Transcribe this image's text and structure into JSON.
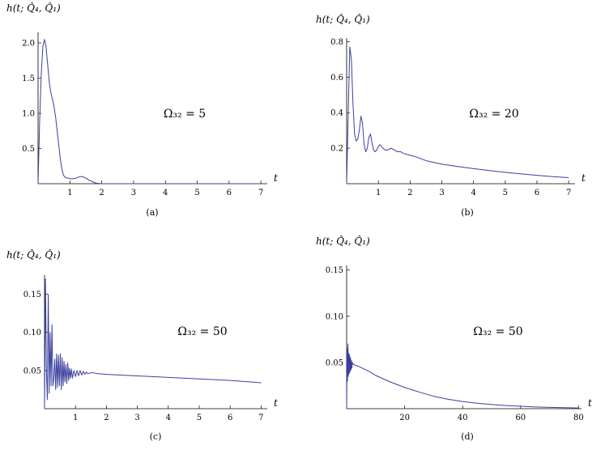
{
  "chart_data": [
    {
      "panel": "(a)",
      "type": "line",
      "ylabel": "h(t; Q̂₄, Q̂₁)",
      "xlabel": "t",
      "annotation": "Ω₃₂ = 5",
      "caption": "(a)",
      "xlim": [
        0,
        7.2
      ],
      "ylim": [
        0,
        2.15
      ],
      "xticks": [
        1,
        2,
        3,
        4,
        5,
        6,
        7
      ],
      "yticks": [
        0.5,
        1.0,
        1.5,
        2.0
      ],
      "ytick_labels": [
        "0.5",
        "1.0",
        "1.5",
        "2.0"
      ],
      "series": [
        {
          "color": "#3a3f9c",
          "x": [
            0,
            0.05,
            0.1,
            0.15,
            0.2,
            0.25,
            0.3,
            0.35,
            0.4,
            0.45,
            0.5,
            0.55,
            0.6,
            0.65,
            0.7,
            0.75,
            0.8,
            0.85,
            0.9,
            0.95,
            1.0,
            1.1,
            1.2,
            1.3,
            1.4,
            1.5,
            1.6,
            1.7,
            1.8,
            1.9,
            2.0,
            2.5,
            3,
            4,
            5,
            6,
            7
          ],
          "y": [
            0,
            0.9,
            1.55,
            1.95,
            2.05,
            1.95,
            1.7,
            1.45,
            1.3,
            1.2,
            1.1,
            0.95,
            0.75,
            0.55,
            0.35,
            0.2,
            0.12,
            0.09,
            0.08,
            0.08,
            0.07,
            0.07,
            0.08,
            0.1,
            0.1,
            0.08,
            0.05,
            0.03,
            0.01,
            0.005,
            0,
            0,
            0,
            0,
            0,
            0,
            0
          ]
        }
      ]
    },
    {
      "panel": "(b)",
      "type": "line",
      "ylabel": "h(t; Q̂₄, Q̂₁)",
      "xlabel": "t",
      "annotation": "Ω₃₂ = 20",
      "caption": "(b)",
      "xlim": [
        0,
        7.2
      ],
      "ylim": [
        0,
        0.82
      ],
      "xticks": [
        1,
        2,
        3,
        4,
        5,
        6,
        7
      ],
      "yticks": [
        0.2,
        0.4,
        0.6,
        0.8
      ],
      "ytick_labels": [
        "0.2",
        "0.4",
        "0.6",
        "0.8"
      ],
      "series": [
        {
          "color": "#3a3f9c",
          "x": [
            0,
            0.05,
            0.1,
            0.15,
            0.2,
            0.25,
            0.3,
            0.35,
            0.4,
            0.45,
            0.5,
            0.55,
            0.6,
            0.65,
            0.7,
            0.75,
            0.8,
            0.85,
            0.9,
            0.95,
            1.0,
            1.05,
            1.1,
            1.2,
            1.3,
            1.4,
            1.5,
            1.6,
            1.7,
            1.8,
            2.0,
            2.2,
            2.5,
            3,
            3.5,
            4,
            4.5,
            5,
            5.5,
            6,
            6.5,
            7
          ],
          "y": [
            0,
            0.4,
            0.77,
            0.7,
            0.45,
            0.28,
            0.24,
            0.25,
            0.3,
            0.38,
            0.34,
            0.22,
            0.18,
            0.2,
            0.26,
            0.28,
            0.23,
            0.19,
            0.18,
            0.19,
            0.21,
            0.22,
            0.21,
            0.19,
            0.19,
            0.2,
            0.19,
            0.18,
            0.18,
            0.17,
            0.16,
            0.15,
            0.13,
            0.11,
            0.097,
            0.085,
            0.074,
            0.064,
            0.055,
            0.047,
            0.04,
            0.034
          ]
        }
      ]
    },
    {
      "panel": "(c)",
      "type": "line",
      "ylabel": "h(t; Q̂₄, Q̂₁)",
      "xlabel": "t",
      "annotation": "Ω₃₂ = 50",
      "caption": "(c)",
      "xlim": [
        0,
        7.2
      ],
      "ylim": [
        0,
        0.175
      ],
      "xticks": [
        1,
        2,
        3,
        4,
        5,
        6,
        7
      ],
      "yticks": [
        0.05,
        0.1,
        0.15
      ],
      "ytick_labels": [
        "0.05",
        "0.10",
        "0.15"
      ],
      "series": [
        {
          "color": "#3a3f9c",
          "x": [
            0,
            0.03,
            0.06,
            0.09,
            0.12,
            0.15,
            0.18,
            0.21,
            0.24,
            0.27,
            0.3,
            0.33,
            0.36,
            0.39,
            0.42,
            0.45,
            0.48,
            0.51,
            0.54,
            0.57,
            0.6,
            0.63,
            0.66,
            0.69,
            0.72,
            0.75,
            0.78,
            0.81,
            0.84,
            0.87,
            0.9,
            0.95,
            1.0,
            1.05,
            1.1,
            1.15,
            1.2,
            1.25,
            1.3,
            1.35,
            1.4,
            1.5,
            1.6,
            1.7,
            2.0,
            2.5,
            3,
            3.5,
            4,
            4.5,
            5,
            5.5,
            6,
            6.5,
            7
          ],
          "y": [
            0,
            0.17,
            0.05,
            0.012,
            0.15,
            0.02,
            0.1,
            0.03,
            0.11,
            0.03,
            0.04,
            0.065,
            0.025,
            0.072,
            0.028,
            0.07,
            0.03,
            0.072,
            0.025,
            0.067,
            0.03,
            0.062,
            0.035,
            0.058,
            0.033,
            0.06,
            0.037,
            0.053,
            0.04,
            0.052,
            0.04,
            0.05,
            0.042,
            0.05,
            0.043,
            0.05,
            0.044,
            0.049,
            0.045,
            0.048,
            0.046,
            0.047,
            0.047,
            0.046,
            0.045,
            0.044,
            0.043,
            0.042,
            0.041,
            0.04,
            0.039,
            0.038,
            0.037,
            0.0355,
            0.034
          ]
        }
      ]
    },
    {
      "panel": "(d)",
      "type": "line",
      "ylabel": "h(t; Q̂₄, Q̂₁)",
      "xlabel": "t",
      "annotation": "Ω₃₂ = 50",
      "caption": "(d)",
      "xlim": [
        0,
        81
      ],
      "ylim": [
        0,
        0.155
      ],
      "xticks": [
        20,
        40,
        60,
        80
      ],
      "yticks": [
        0.05,
        0.1,
        0.15
      ],
      "ytick_labels": [
        "0.05",
        "0.10",
        "0.15"
      ],
      "series": [
        {
          "color": "#3a3f9c",
          "x": [
            0,
            0.15,
            0.3,
            0.45,
            0.6,
            0.75,
            0.9,
            1.05,
            1.2,
            1.35,
            1.5,
            1.65,
            1.8,
            2.0,
            2.3,
            3,
            4,
            6,
            8,
            10,
            15,
            20,
            25,
            30,
            35,
            40,
            45,
            50,
            55,
            60,
            65,
            70,
            75,
            80
          ],
          "y": [
            0,
            0.065,
            0.03,
            0.07,
            0.035,
            0.06,
            0.038,
            0.058,
            0.04,
            0.055,
            0.042,
            0.052,
            0.044,
            0.05,
            0.048,
            0.047,
            0.046,
            0.043,
            0.04,
            0.036,
            0.029,
            0.023,
            0.018,
            0.0135,
            0.0102,
            0.0078,
            0.0059,
            0.0045,
            0.0034,
            0.0026,
            0.0019,
            0.0014,
            0.0011,
            0.0008
          ]
        }
      ]
    }
  ]
}
